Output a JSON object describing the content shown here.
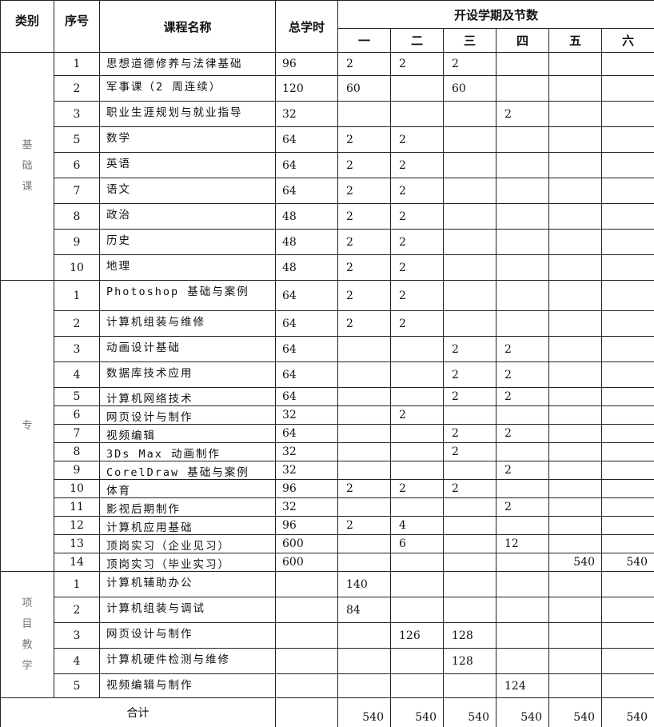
{
  "header": {
    "category": "类别",
    "seq": "序号",
    "course": "课程名称",
    "hours": "总学时",
    "semesters_title": "开设学期及节数",
    "semesters": [
      "一",
      "二",
      "三",
      "四",
      "五",
      "六"
    ]
  },
  "groups": [
    {
      "category": "基础课",
      "rows": [
        {
          "seq": "1",
          "name": "思想道德修养与法律基础",
          "hours": "96",
          "sem": [
            "2",
            "2",
            "2",
            "",
            "",
            ""
          ]
        },
        {
          "seq": "2",
          "name": "军事课（2 周连续）",
          "hours": "120",
          "sem": [
            "60",
            "",
            "60",
            "",
            "",
            ""
          ]
        },
        {
          "seq": "3",
          "name": "职业生涯规划与就业指导",
          "hours": "32",
          "sem": [
            "",
            "",
            "",
            "2",
            "",
            ""
          ]
        },
        {
          "seq": "5",
          "name": "数学",
          "hours": "64",
          "sem": [
            "2",
            "2",
            "",
            "",
            "",
            ""
          ]
        },
        {
          "seq": "6",
          "name": "英语",
          "hours": "64",
          "sem": [
            "2",
            "2",
            "",
            "",
            "",
            ""
          ]
        },
        {
          "seq": "7",
          "name": "语文",
          "hours": "64",
          "sem": [
            "2",
            "2",
            "",
            "",
            "",
            ""
          ]
        },
        {
          "seq": "8",
          "name": "政治",
          "hours": "48",
          "sem": [
            "2",
            "2",
            "",
            "",
            "",
            ""
          ]
        },
        {
          "seq": "9",
          "name": "历史",
          "hours": "48",
          "sem": [
            "2",
            "2",
            "",
            "",
            "",
            ""
          ]
        },
        {
          "seq": "10",
          "name": "地理",
          "hours": "48",
          "sem": [
            "2",
            "2",
            "",
            "",
            "",
            ""
          ]
        }
      ]
    },
    {
      "category": "专",
      "rows": [
        {
          "seq": "1",
          "name": "Photoshop 基础与案例",
          "hours": "64",
          "sem": [
            "2",
            "2",
            "",
            "",
            "",
            ""
          ]
        },
        {
          "seq": "2",
          "name": "计算机组装与维修",
          "hours": "64",
          "sem": [
            "2",
            "2",
            "",
            "",
            "",
            ""
          ]
        },
        {
          "seq": "3",
          "name": "动画设计基础",
          "hours": "64",
          "sem": [
            "",
            "",
            "2",
            "2",
            "",
            ""
          ]
        },
        {
          "seq": "4",
          "name": "数据库技术应用",
          "hours": "64",
          "sem": [
            "",
            "",
            "2",
            "2",
            "",
            ""
          ]
        },
        {
          "seq": "5",
          "name": "计算机网络技术",
          "hours": "64",
          "sem": [
            "",
            "",
            "2",
            "2",
            "",
            ""
          ]
        },
        {
          "seq": "6",
          "name": "网页设计与制作",
          "hours": "32",
          "sem": [
            "",
            "2",
            "",
            "",
            "",
            ""
          ]
        },
        {
          "seq": "7",
          "name": "视频编辑",
          "hours": "64",
          "sem": [
            "",
            "",
            "2",
            "2",
            "",
            ""
          ]
        },
        {
          "seq": "8",
          "name": "3Ds Max 动画制作",
          "hours": "32",
          "sem": [
            "",
            "",
            "2",
            "",
            "",
            ""
          ]
        },
        {
          "seq": "9",
          "name": "CorelDraw 基础与案例",
          "hours": "32",
          "sem": [
            "",
            "",
            "",
            "2",
            "",
            ""
          ]
        },
        {
          "seq": "10",
          "name": "体育",
          "hours": "96",
          "sem": [
            "2",
            "2",
            "2",
            "",
            "",
            ""
          ]
        },
        {
          "seq": "11",
          "name": "影视后期制作",
          "hours": "32",
          "sem": [
            "",
            "",
            "",
            "2",
            "",
            ""
          ]
        },
        {
          "seq": "12",
          "name": "计算机应用基础",
          "hours": "96",
          "sem": [
            "2",
            "4",
            "",
            "",
            "",
            ""
          ]
        },
        {
          "seq": "13",
          "name": "顶岗实习（企业见习）",
          "hours": "600",
          "sem": [
            "",
            "6",
            "",
            "12",
            "",
            ""
          ]
        },
        {
          "seq": "14",
          "name": "顶岗实习（毕业实习）",
          "hours": "600",
          "sem": [
            "",
            "",
            "",
            "",
            "540",
            "540"
          ]
        }
      ]
    },
    {
      "category": "项目教学",
      "rows": [
        {
          "seq": "1",
          "name": "计算机辅助办公",
          "hours": "",
          "sem": [
            "140",
            "",
            "",
            "",
            "",
            ""
          ]
        },
        {
          "seq": "2",
          "name": "计算机组装与调试",
          "hours": "",
          "sem": [
            "84",
            "",
            "",
            "",
            "",
            ""
          ]
        },
        {
          "seq": "3",
          "name": "网页设计与制作",
          "hours": "",
          "sem": [
            "",
            "126",
            "128",
            "",
            "",
            ""
          ]
        },
        {
          "seq": "4",
          "name": "计算机硬件检测与维修",
          "hours": "",
          "sem": [
            "",
            "",
            "128",
            "",
            "",
            ""
          ]
        },
        {
          "seq": "5",
          "name": "视频编辑与制作",
          "hours": "",
          "sem": [
            "",
            "",
            "",
            "124",
            "",
            ""
          ]
        }
      ]
    }
  ],
  "total": {
    "label": "合计",
    "hours": "",
    "sem": [
      "540",
      "540",
      "540",
      "540",
      "540",
      "540"
    ]
  }
}
